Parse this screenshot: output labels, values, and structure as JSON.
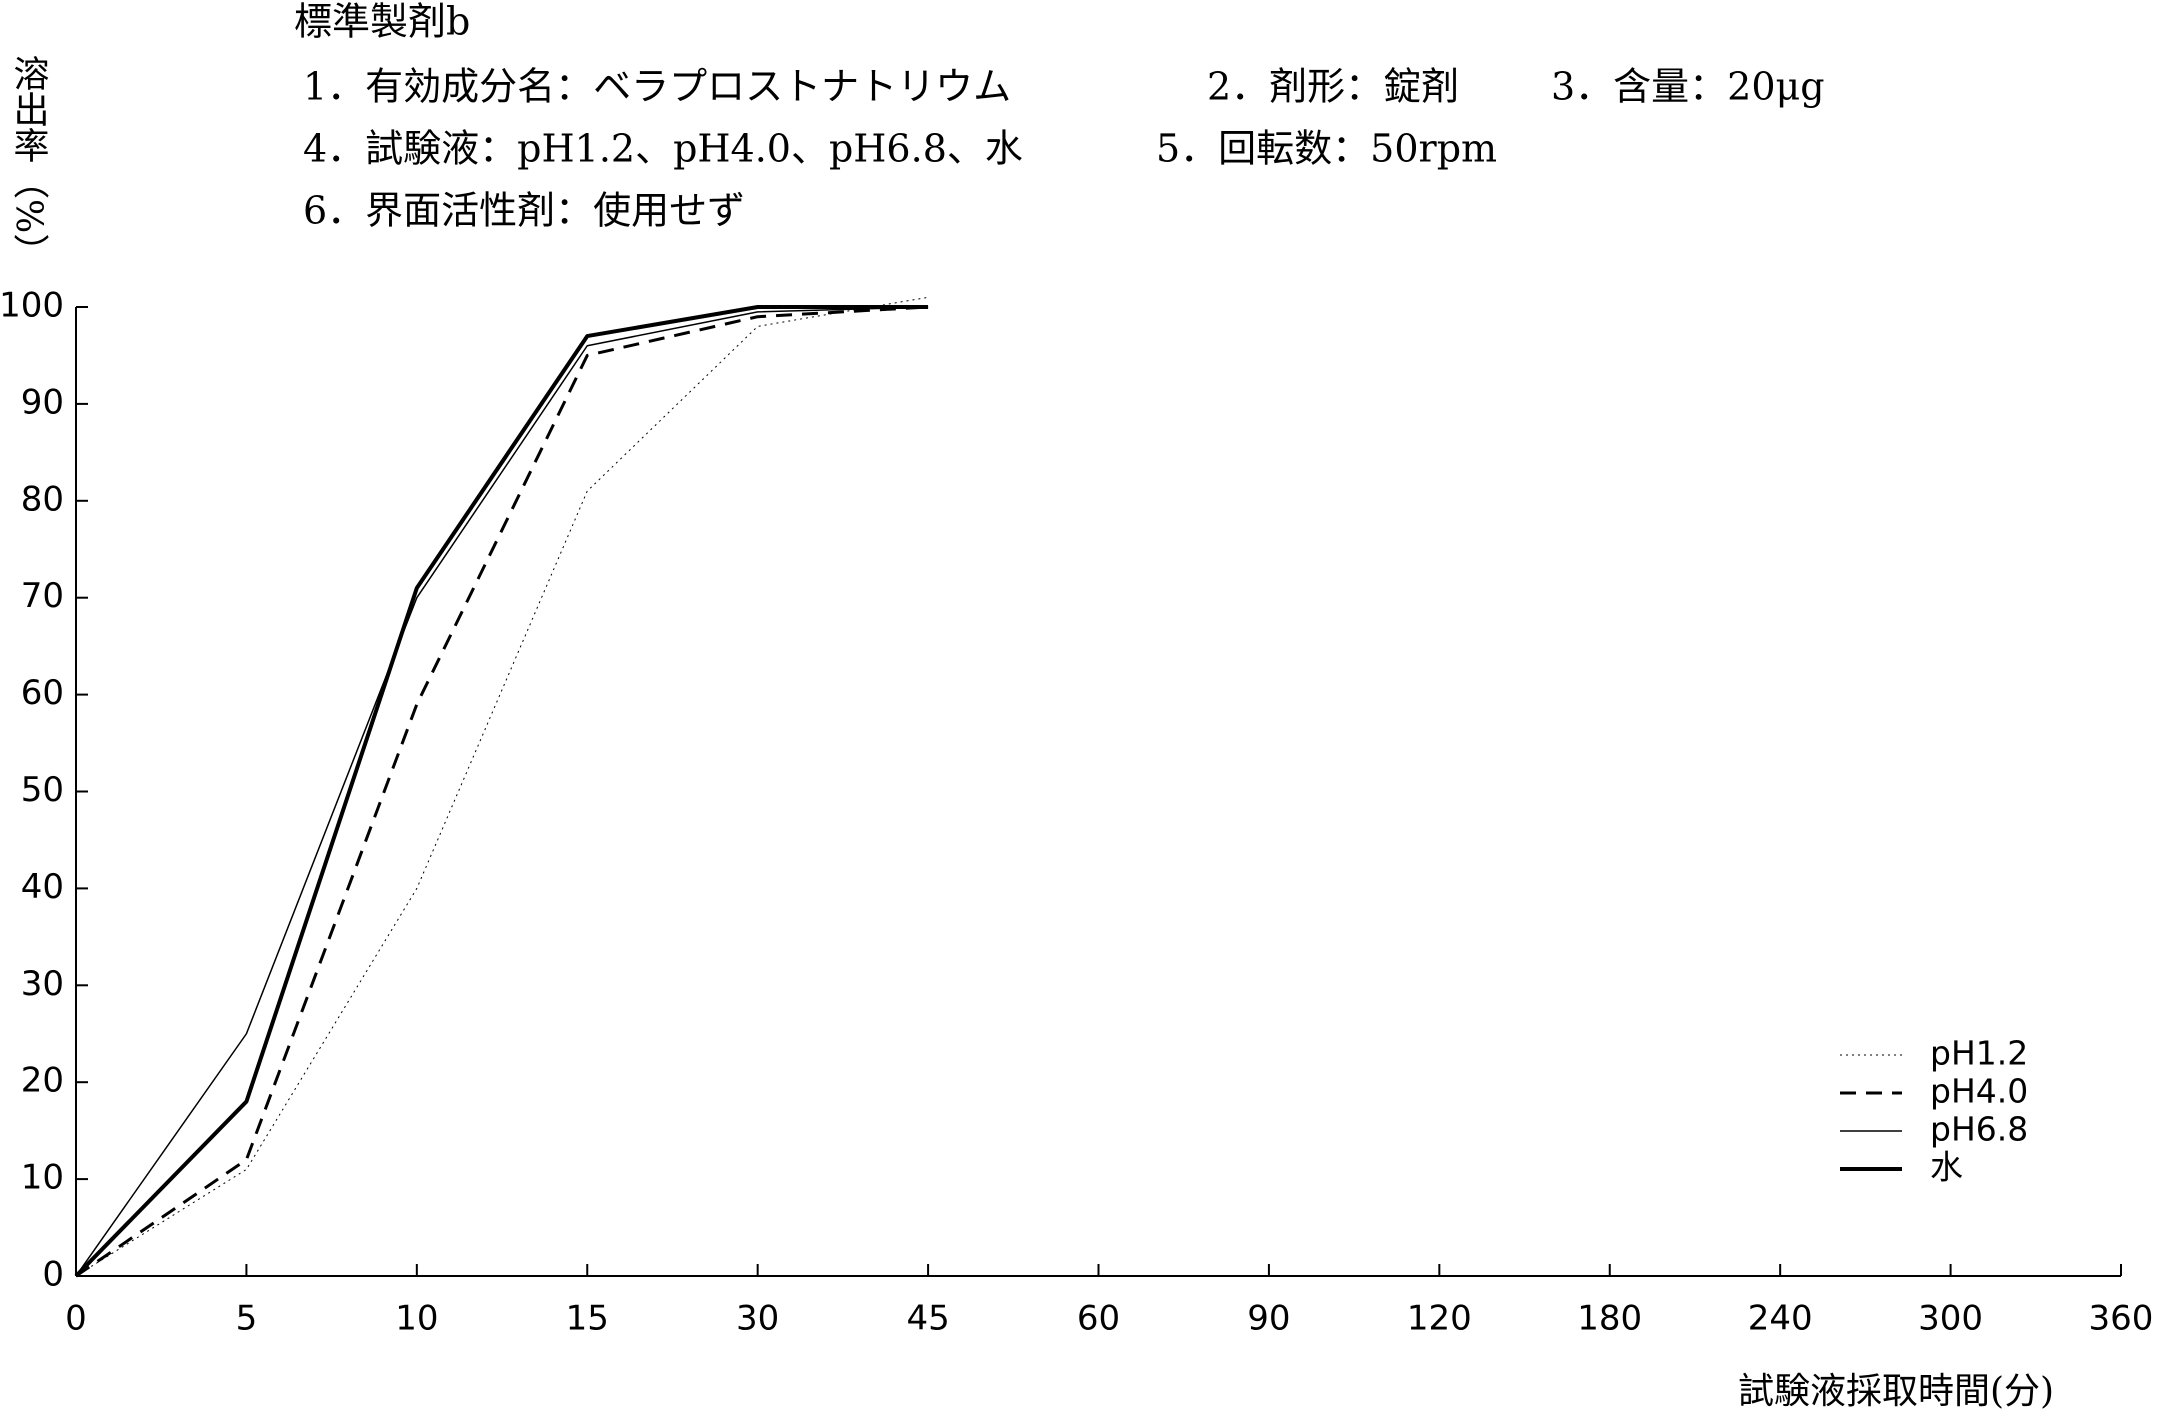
{
  "chart_data": {
    "type": "line",
    "header": {
      "title": "標準製剤b",
      "items": [
        "1．有効成分名：ベラプロストナトリウム",
        "2．剤形：錠剤",
        "3．含量：20μg",
        "4．試験液：pH1.2、pH4.0、pH6.8、水",
        "5．回転数：50rpm",
        "6．界面活性剤：使用せず"
      ]
    },
    "y_label": "溶出率（%）",
    "x_label": "試験液採取時間(分)",
    "categories": [
      "0",
      "5",
      "10",
      "15",
      "30",
      "45",
      "60",
      "90",
      "120",
      "180",
      "240",
      "300",
      "360"
    ],
    "series": [
      {
        "name": "pH1.2",
        "color": "#000000",
        "style": "dotted",
        "width": 1,
        "values": [
          0,
          11,
          40,
          81,
          98,
          101,
          null,
          null,
          null,
          null,
          null,
          null,
          null
        ]
      },
      {
        "name": "pH4.0",
        "color": "#000000",
        "style": "dashed",
        "width": 3,
        "values": [
          0,
          12,
          59,
          95,
          99,
          100,
          null,
          null,
          null,
          null,
          null,
          null,
          null
        ]
      },
      {
        "name": "pH6.8",
        "color": "#000000",
        "style": "solid",
        "width": 1.5,
        "values": [
          0,
          25,
          70,
          96,
          99.5,
          100,
          null,
          null,
          null,
          null,
          null,
          null,
          null
        ]
      },
      {
        "name": "水",
        "color": "#000000",
        "style": "solid",
        "width": 4,
        "values": [
          0,
          18,
          71,
          97,
          100,
          100,
          null,
          null,
          null,
          null,
          null,
          null,
          null
        ]
      }
    ],
    "ylim": [
      0,
      100
    ],
    "yticks": [
      0,
      10,
      20,
      30,
      40,
      50,
      60,
      70,
      80,
      90,
      100
    ],
    "grid": false,
    "legend": "lower right"
  }
}
